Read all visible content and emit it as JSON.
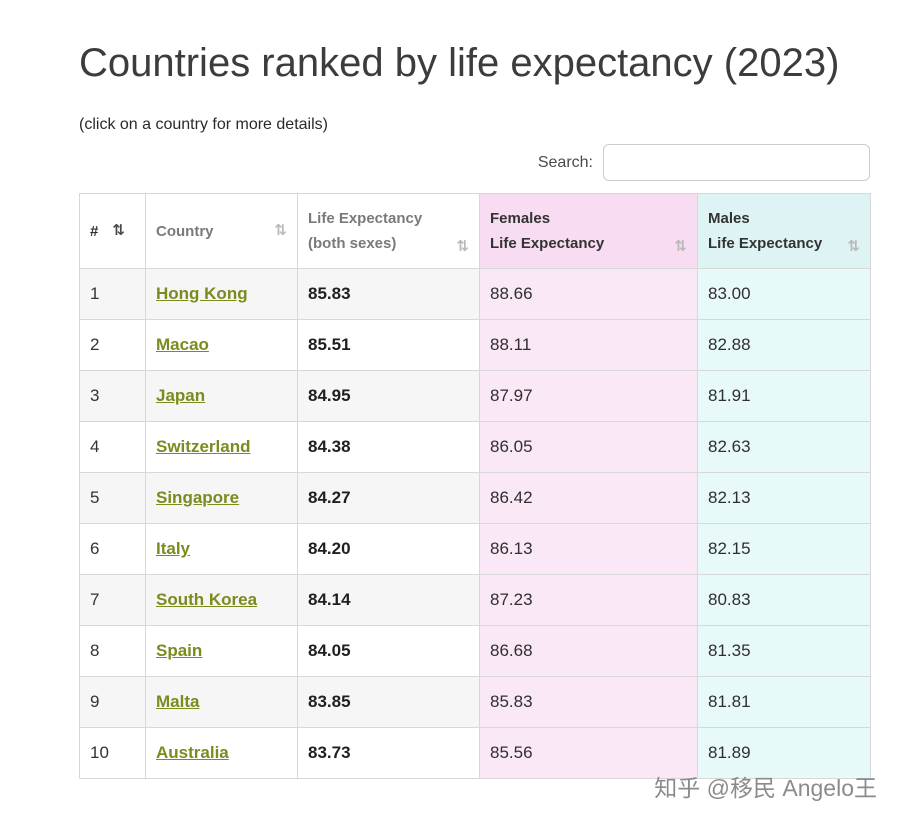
{
  "page": {
    "title": "Countries ranked by life expectancy (2023)",
    "subtitle": "(click on a country for more details)",
    "watermark": "知乎 @移民 Angelo王"
  },
  "search": {
    "label": "Search:",
    "value": "",
    "placeholder": ""
  },
  "colors": {
    "link_green": "#7c8a1e",
    "female_header_bg": "#f8dcf2",
    "female_cell_bg": "#fbe8f7",
    "male_header_bg": "#def4f4",
    "male_cell_bg": "#e8f9f9",
    "stripe_bg": "#f6f6f6"
  },
  "table": {
    "sort_icon": "⇅",
    "headers": {
      "rank": "#",
      "country": "Country",
      "both_line1": "Life Expectancy",
      "both_line2": "(both sexes)",
      "females_line1": "Females",
      "females_line2": "Life Expectancy",
      "males_line1": "Males",
      "males_line2": "Life Expectancy"
    },
    "rows": [
      {
        "rank": "1",
        "country": "Hong Kong",
        "both": "85.83",
        "female": "88.66",
        "male": "83.00"
      },
      {
        "rank": "2",
        "country": "Macao",
        "both": "85.51",
        "female": "88.11",
        "male": "82.88"
      },
      {
        "rank": "3",
        "country": "Japan",
        "both": "84.95",
        "female": "87.97",
        "male": "81.91"
      },
      {
        "rank": "4",
        "country": "Switzerland",
        "both": "84.38",
        "female": "86.05",
        "male": "82.63"
      },
      {
        "rank": "5",
        "country": "Singapore",
        "both": "84.27",
        "female": "86.42",
        "male": "82.13"
      },
      {
        "rank": "6",
        "country": "Italy",
        "both": "84.20",
        "female": "86.13",
        "male": "82.15"
      },
      {
        "rank": "7",
        "country": "South Korea",
        "both": "84.14",
        "female": "87.23",
        "male": "80.83"
      },
      {
        "rank": "8",
        "country": "Spain",
        "both": "84.05",
        "female": "86.68",
        "male": "81.35"
      },
      {
        "rank": "9",
        "country": "Malta",
        "both": "83.85",
        "female": "85.83",
        "male": "81.81"
      },
      {
        "rank": "10",
        "country": "Australia",
        "both": "83.73",
        "female": "85.56",
        "male": "81.89"
      }
    ]
  }
}
